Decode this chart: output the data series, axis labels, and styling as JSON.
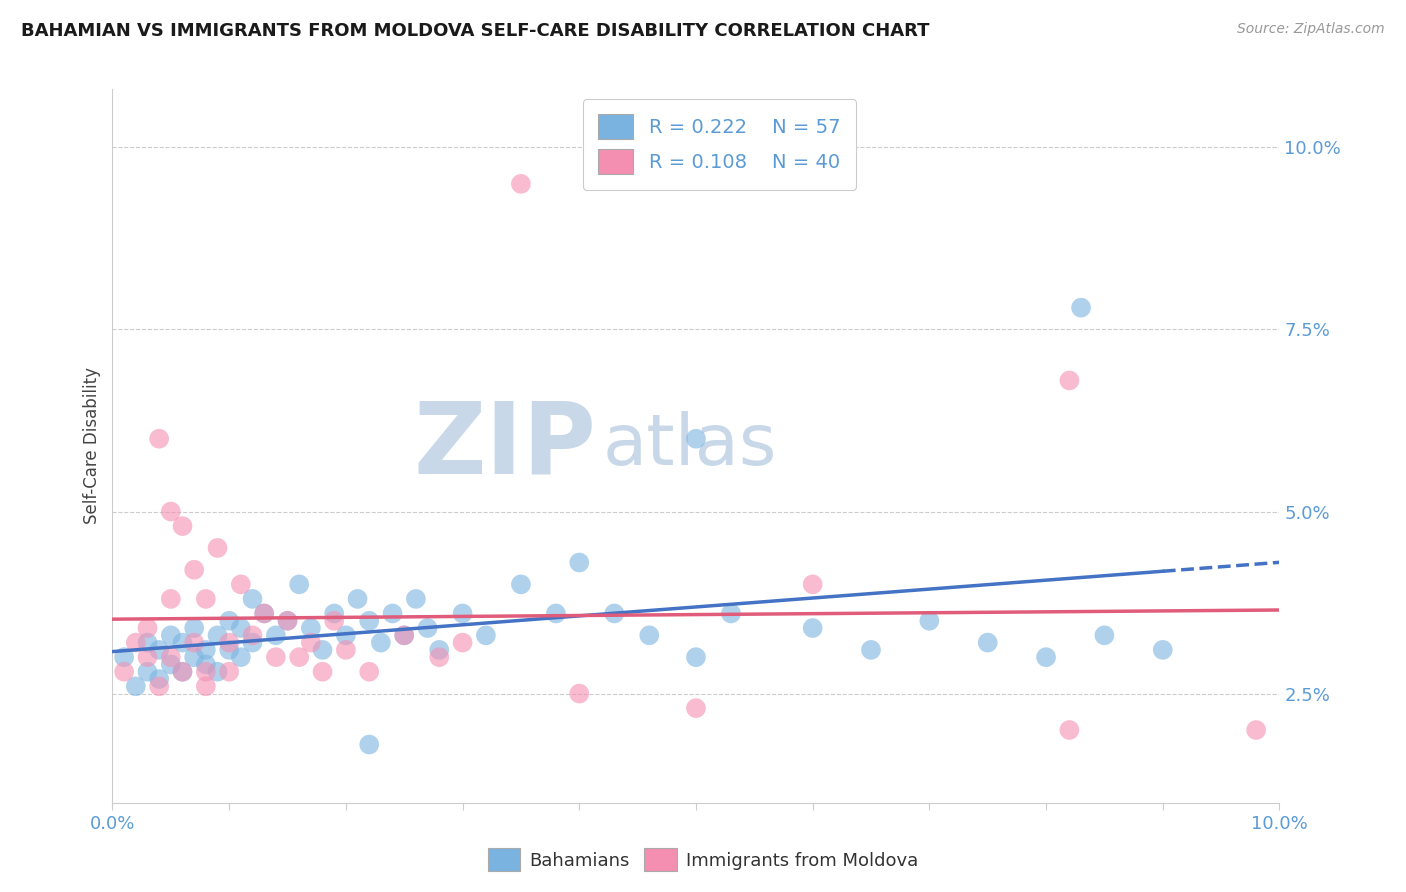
{
  "title": "BAHAMIAN VS IMMIGRANTS FROM MOLDOVA SELF-CARE DISABILITY CORRELATION CHART",
  "source": "Source: ZipAtlas.com",
  "ylabel": "Self-Care Disability",
  "blue_color": "#7ab3e0",
  "pink_color": "#f48fb1",
  "trend_blue_color": "#4472c4",
  "trend_pink_color": "#e05c7a",
  "axis_label_color": "#5b9bd5",
  "grid_color": "#cccccc",
  "watermark_zip_color": "#c8d8e8",
  "watermark_atlas_color": "#c8d8e8",
  "xmin": 0.0,
  "xmax": 0.1,
  "ymin": 0.01,
  "ymax": 0.108,
  "yticks": [
    0.025,
    0.05,
    0.075,
    0.1
  ],
  "xticks": [
    0.0,
    0.01,
    0.02,
    0.03,
    0.04,
    0.05,
    0.06,
    0.07,
    0.08,
    0.09,
    0.1
  ],
  "blue_x": [
    0.001,
    0.002,
    0.003,
    0.003,
    0.004,
    0.004,
    0.005,
    0.005,
    0.006,
    0.006,
    0.007,
    0.007,
    0.008,
    0.008,
    0.009,
    0.009,
    0.01,
    0.01,
    0.011,
    0.011,
    0.012,
    0.012,
    0.013,
    0.014,
    0.015,
    0.016,
    0.017,
    0.018,
    0.019,
    0.02,
    0.021,
    0.022,
    0.023,
    0.024,
    0.025,
    0.026,
    0.027,
    0.028,
    0.03,
    0.032,
    0.035,
    0.038,
    0.04,
    0.043,
    0.046,
    0.05,
    0.053,
    0.06,
    0.065,
    0.07,
    0.075,
    0.08,
    0.085,
    0.09,
    0.083,
    0.05,
    0.022
  ],
  "blue_y": [
    0.03,
    0.026,
    0.028,
    0.032,
    0.031,
    0.027,
    0.029,
    0.033,
    0.028,
    0.032,
    0.03,
    0.034,
    0.031,
    0.029,
    0.033,
    0.028,
    0.031,
    0.035,
    0.03,
    0.034,
    0.032,
    0.038,
    0.036,
    0.033,
    0.035,
    0.04,
    0.034,
    0.031,
    0.036,
    0.033,
    0.038,
    0.035,
    0.032,
    0.036,
    0.033,
    0.038,
    0.034,
    0.031,
    0.036,
    0.033,
    0.04,
    0.036,
    0.043,
    0.036,
    0.033,
    0.03,
    0.036,
    0.034,
    0.031,
    0.035,
    0.032,
    0.03,
    0.033,
    0.031,
    0.078,
    0.06,
    0.018
  ],
  "pink_x": [
    0.001,
    0.002,
    0.003,
    0.004,
    0.004,
    0.005,
    0.005,
    0.006,
    0.006,
    0.007,
    0.007,
    0.008,
    0.008,
    0.009,
    0.01,
    0.01,
    0.011,
    0.012,
    0.013,
    0.014,
    0.015,
    0.016,
    0.017,
    0.018,
    0.019,
    0.02,
    0.022,
    0.025,
    0.028,
    0.03,
    0.035,
    0.04,
    0.05,
    0.06,
    0.082,
    0.082,
    0.098,
    0.003,
    0.005,
    0.008
  ],
  "pink_y": [
    0.028,
    0.032,
    0.03,
    0.026,
    0.06,
    0.05,
    0.03,
    0.048,
    0.028,
    0.042,
    0.032,
    0.038,
    0.028,
    0.045,
    0.032,
    0.028,
    0.04,
    0.033,
    0.036,
    0.03,
    0.035,
    0.03,
    0.032,
    0.028,
    0.035,
    0.031,
    0.028,
    0.033,
    0.03,
    0.032,
    0.095,
    0.025,
    0.023,
    0.04,
    0.02,
    0.068,
    0.02,
    0.034,
    0.038,
    0.026
  ]
}
